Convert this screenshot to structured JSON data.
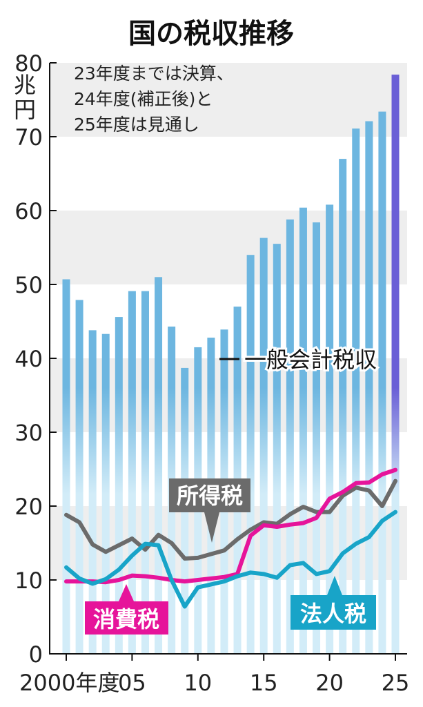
{
  "chart_data": {
    "type": "bar",
    "title": "国の税収推移",
    "ylabel": "兆円",
    "ylim": [
      0,
      80
    ],
    "yticks": [
      0,
      10,
      20,
      30,
      40,
      50,
      60,
      70,
      80
    ],
    "x": [
      2000,
      2001,
      2002,
      2003,
      2004,
      2005,
      2006,
      2007,
      2008,
      2009,
      2010,
      2011,
      2012,
      2013,
      2014,
      2015,
      2016,
      2017,
      2018,
      2019,
      2020,
      2021,
      2022,
      2023,
      2024,
      2025
    ],
    "xtick_labels": [
      {
        "x": 2000,
        "label": "2000年度"
      },
      {
        "x": 2005,
        "label": "05"
      },
      {
        "x": 2010,
        "label": "10"
      },
      {
        "x": 2015,
        "label": "15"
      },
      {
        "x": 2020,
        "label": "20"
      },
      {
        "x": 2025,
        "label": "25"
      }
    ],
    "note_lines": [
      "23年度までは決算、",
      "24年度(補正後)と",
      "25年度は見通し"
    ],
    "grid": "alternating horizontal bands",
    "colors": {
      "bar": "#6db6e0",
      "bar_faded": "#d2ecf8",
      "bar_forecast": "#6a5fd6",
      "band": "#eeeeee",
      "income_tax": "#6b6b6b",
      "consumption_tax": "#e6149a",
      "corporate_tax": "#18a4c8"
    },
    "series": [
      {
        "name": "一般会計税収",
        "kind": "bar",
        "values": [
          50.7,
          47.9,
          43.8,
          43.3,
          45.6,
          49.1,
          49.1,
          51.0,
          44.3,
          38.7,
          41.5,
          42.8,
          43.9,
          47.0,
          54.0,
          56.3,
          55.5,
          58.8,
          60.4,
          58.4,
          60.8,
          67.0,
          71.1,
          72.1,
          73.4,
          78.4
        ]
      },
      {
        "name": "所得税",
        "kind": "line",
        "values": [
          18.8,
          17.8,
          14.8,
          13.8,
          14.7,
          15.6,
          14.1,
          16.1,
          15.0,
          12.9,
          13.0,
          13.5,
          14.0,
          15.5,
          16.8,
          17.8,
          17.6,
          18.9,
          19.9,
          19.2,
          19.2,
          21.4,
          22.5,
          22.1,
          20.0,
          23.4
        ]
      },
      {
        "name": "消費税",
        "kind": "line",
        "values": [
          9.8,
          9.8,
          9.8,
          9.7,
          10.0,
          10.6,
          10.5,
          10.3,
          10.0,
          9.8,
          10.0,
          10.2,
          10.4,
          10.8,
          16.0,
          17.4,
          17.2,
          17.5,
          17.7,
          18.4,
          21.0,
          21.9,
          23.1,
          23.2,
          24.3,
          24.9
        ]
      },
      {
        "name": "法人税",
        "kind": "line",
        "values": [
          11.7,
          10.2,
          9.5,
          10.1,
          11.4,
          13.3,
          14.9,
          14.7,
          10.0,
          6.4,
          9.0,
          9.4,
          9.8,
          10.5,
          11.0,
          10.8,
          10.3,
          12.0,
          12.3,
          10.8,
          11.2,
          13.6,
          14.9,
          15.8,
          18.0,
          19.2
        ]
      }
    ],
    "labels": {
      "total": "一般会計税収",
      "income_tax": "所得税",
      "consumption_tax": "消費税",
      "corporate_tax": "法人税"
    }
  }
}
